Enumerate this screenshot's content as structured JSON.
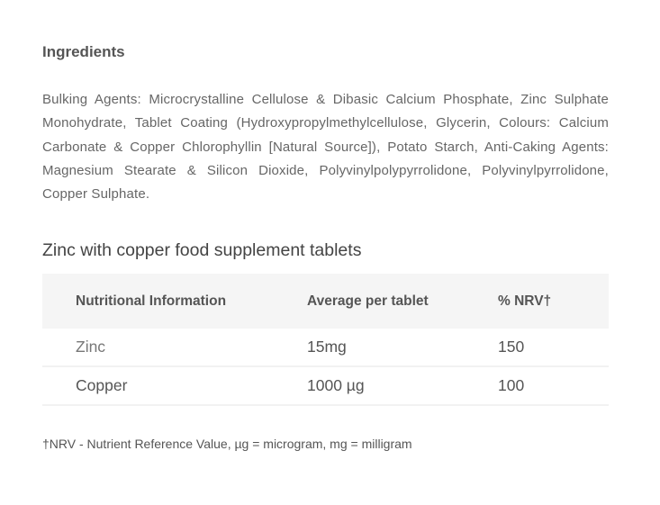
{
  "ingredients": {
    "heading": "Ingredients",
    "text": "Bulking Agents: Microcrystalline Cellulose & Dibasic Calcium Phosphate, Zinc Sulphate Monohydrate, Tablet Coating (Hydroxypropylmethylcellulose, Glycerin, Colours: Calcium Carbonate & Copper Chlorophyllin [Natural Source]), Potato Starch, Anti-Caking Agents: Magnesium Stearate & Silicon Dioxide, Polyvinylpolypyrrolidone, Polyvinylpyrrolidone, Copper Sulphate."
  },
  "nutrition": {
    "title": "Zinc with copper food supplement tablets",
    "headers": [
      "Nutritional Information",
      "Average per tablet",
      "% NRV†"
    ],
    "rows": [
      [
        "Zinc",
        "15mg",
        "150"
      ],
      [
        "Copper",
        "1000 µg",
        "100"
      ]
    ],
    "footnote": "†NRV - Nutrient Reference Value, µg = microgram, mg = milligram"
  }
}
